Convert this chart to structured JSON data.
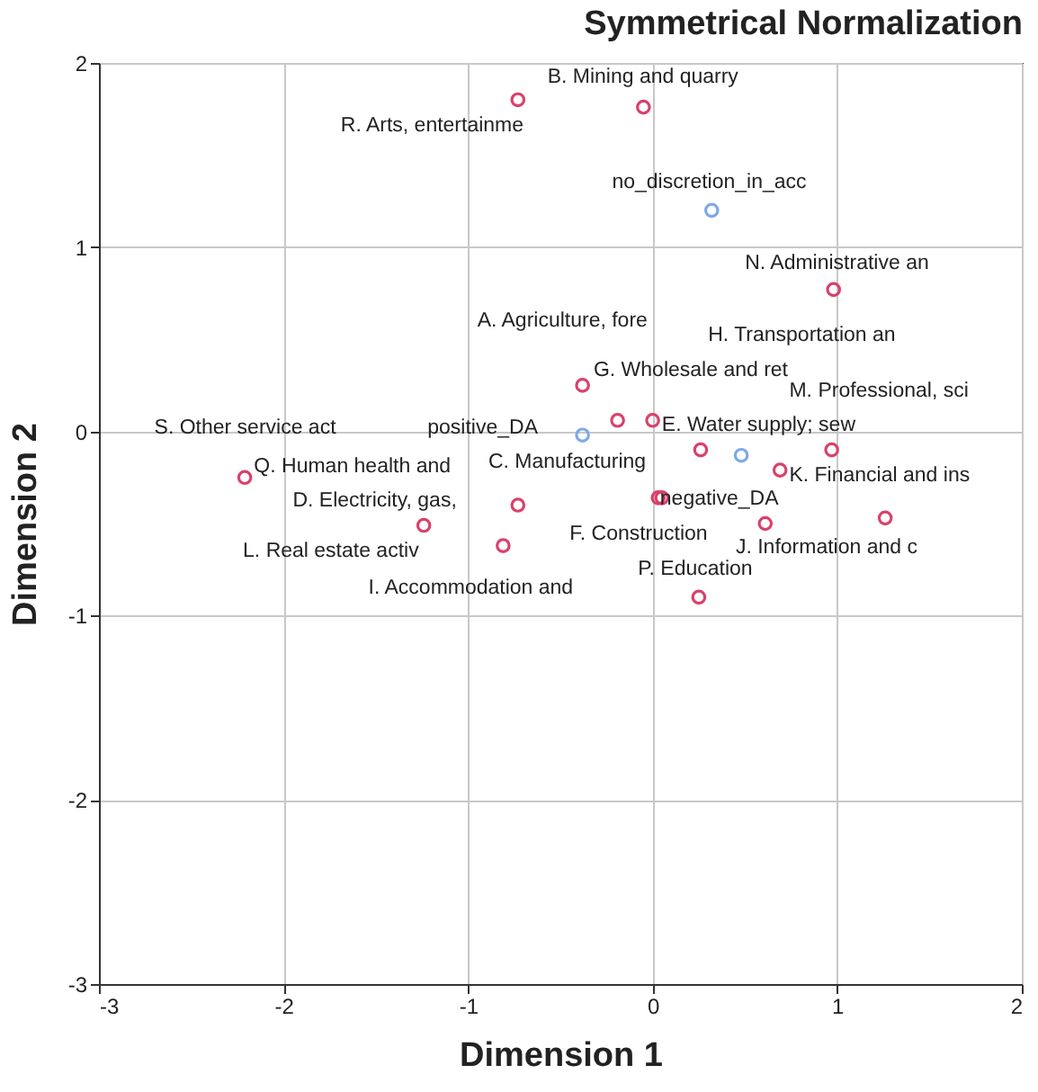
{
  "chart_data": {
    "type": "scatter",
    "title": "Symmetrical Normalization",
    "xlabel": "Dimension 1",
    "ylabel": "Dimension 2",
    "xlim": [
      -3,
      2
    ],
    "ylim": [
      -3,
      2
    ],
    "xticks": [
      -3,
      -2,
      -1,
      0,
      1,
      2
    ],
    "yticks": [
      -3,
      -2,
      -1,
      0,
      1,
      2
    ],
    "grid": true,
    "marker": "circle",
    "series": [
      {
        "color": "#d9416a",
        "x": [
          -0.73,
          -0.05,
          0.98,
          -0.38,
          -0.19,
          0.0,
          0.26,
          0.97,
          0.69,
          0.03,
          0.05,
          0.61,
          1.26,
          0.25,
          -2.21,
          -0.73,
          -1.24,
          -0.81
        ],
        "values": [
          1.8,
          1.76,
          0.77,
          0.25,
          0.06,
          0.06,
          -0.1,
          -0.1,
          -0.21,
          -0.36,
          -0.36,
          -0.5,
          -0.47,
          -0.9,
          -0.25,
          -0.4,
          -0.51,
          -0.62
        ]
      },
      {
        "color": "#7ea9e8",
        "x": [
          0.32,
          -0.38,
          0.48
        ],
        "values": [
          1.2,
          -0.02,
          -0.13
        ]
      }
    ],
    "annotations": [
      {
        "text": "B. Mining and quarry",
        "x": -0.05,
        "y": 1.76
      },
      {
        "text": "R. Arts, entertainme",
        "x": -0.73,
        "y": 1.8
      },
      {
        "text": "no_discretion_in_acc",
        "x": 0.32,
        "y": 1.2
      },
      {
        "text": "N. Administrative an",
        "x": 0.98,
        "y": 0.77
      },
      "A. Agriculture, fore",
      "H. Transportation an",
      {
        "text": "G. Wholesale and ret",
        "x": -0.38,
        "y": 0.25
      },
      {
        "text": "M. Professional, sci",
        "x": 0.97,
        "y": -0.1
      },
      "S. Other service act",
      {
        "text": "positive_DA",
        "x": -0.38,
        "y": -0.02
      },
      {
        "text": "E. Water supply; sew",
        "x": 0.0,
        "y": 0.06
      },
      {
        "text": "Q. Human health and",
        "x": -2.21,
        "y": -0.25
      },
      {
        "text": "C. Manufacturing",
        "x": 0.03,
        "y": -0.36
      },
      {
        "text": "K. Financial and ins",
        "x": 0.69,
        "y": -0.21
      },
      "D. Electricity, gas,",
      {
        "text": "negative_DA",
        "x": 0.48,
        "y": -0.13
      },
      {
        "text": "F. Construction",
        "x": 0.61,
        "y": -0.5
      },
      {
        "text": "J. Information and c",
        "x": 1.26,
        "y": -0.47
      },
      {
        "text": "L. Real estate activ",
        "x": -1.24,
        "y": -0.51
      },
      {
        "text": "P. Education",
        "x": 0.25,
        "y": -0.9
      },
      {
        "text": "I. Accommodation and",
        "x": -0.81,
        "y": -0.62
      }
    ]
  }
}
